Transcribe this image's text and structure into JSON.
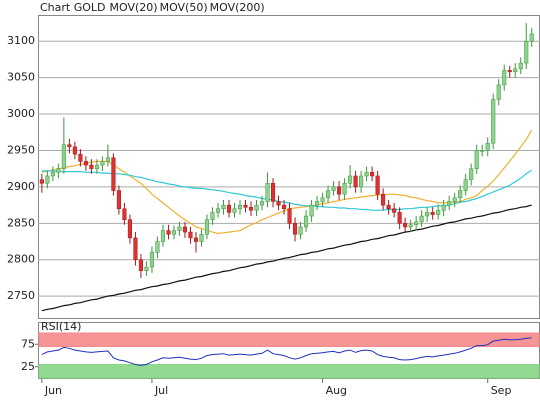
{
  "chart_data": [
    {
      "type": "candlestick",
      "title": "Chart GOLD",
      "title_color": "#e05a2a",
      "up_color": "#8fd18f",
      "up_edge": "#3a9a3a",
      "down_color": "#e03030",
      "down_edge": "#a01818",
      "open": [
        2910,
        2905,
        2915,
        2920,
        2925,
        2958,
        2955,
        2945,
        2935,
        2930,
        2925,
        2930,
        2935,
        2940,
        2895,
        2870,
        2855,
        2830,
        2800,
        2785,
        2790,
        2810,
        2825,
        2840,
        2835,
        2840,
        2845,
        2838,
        2830,
        2825,
        2835,
        2855,
        2865,
        2870,
        2875,
        2865,
        2870,
        2875,
        2872,
        2868,
        2875,
        2880,
        2905,
        2880,
        2875,
        2870,
        2850,
        2835,
        2845,
        2860,
        2875,
        2880,
        2885,
        2895,
        2900,
        2890,
        2905,
        2915,
        2900,
        2915,
        2920,
        2915,
        2890,
        2875,
        2870,
        2865,
        2850,
        2845,
        2848,
        2852,
        2860,
        2865,
        2862,
        2868,
        2875,
        2880,
        2885,
        2895,
        2910,
        2925,
        2950,
        2950,
        2960,
        3020,
        3040,
        3060,
        3058,
        3062,
        3070,
        3100
      ],
      "high": [
        2918,
        2922,
        2928,
        2932,
        2995,
        2966,
        2962,
        2952,
        2942,
        2938,
        2938,
        2942,
        2958,
        2946,
        2902,
        2878,
        2862,
        2838,
        2808,
        2798,
        2818,
        2832,
        2848,
        2848,
        2847,
        2852,
        2852,
        2845,
        2838,
        2842,
        2862,
        2872,
        2878,
        2882,
        2882,
        2878,
        2882,
        2882,
        2880,
        2882,
        2888,
        2920,
        2912,
        2888,
        2882,
        2878,
        2858,
        2852,
        2868,
        2882,
        2888,
        2892,
        2902,
        2908,
        2908,
        2912,
        2930,
        2922,
        2922,
        2928,
        2928,
        2922,
        2898,
        2882,
        2878,
        2872,
        2858,
        2855,
        2860,
        2868,
        2872,
        2872,
        2876,
        2882,
        2888,
        2892,
        2902,
        2918,
        2932,
        2958,
        2958,
        2968,
        3028,
        3048,
        3068,
        3066,
        3070,
        3078,
        3125,
        3118
      ],
      "low": [
        2892,
        2898,
        2908,
        2912,
        2918,
        2946,
        2938,
        2928,
        2922,
        2918,
        2918,
        2922,
        2928,
        2888,
        2862,
        2848,
        2822,
        2792,
        2775,
        2778,
        2782,
        2802,
        2818,
        2828,
        2828,
        2833,
        2830,
        2822,
        2810,
        2818,
        2828,
        2848,
        2858,
        2862,
        2858,
        2858,
        2862,
        2865,
        2860,
        2860,
        2868,
        2872,
        2872,
        2868,
        2862,
        2842,
        2825,
        2828,
        2838,
        2852,
        2868,
        2872,
        2878,
        2888,
        2882,
        2882,
        2898,
        2892,
        2892,
        2908,
        2908,
        2882,
        2868,
        2862,
        2858,
        2842,
        2838,
        2838,
        2840,
        2845,
        2852,
        2855,
        2855,
        2860,
        2868,
        2872,
        2878,
        2888,
        2902,
        2918,
        2942,
        2942,
        2952,
        3012,
        3032,
        3050,
        3050,
        3055,
        3062,
        3092
      ],
      "close": [
        2905,
        2915,
        2920,
        2925,
        2958,
        2955,
        2945,
        2935,
        2930,
        2925,
        2930,
        2935,
        2940,
        2895,
        2870,
        2855,
        2830,
        2800,
        2785,
        2790,
        2810,
        2825,
        2840,
        2835,
        2840,
        2845,
        2838,
        2830,
        2825,
        2835,
        2855,
        2865,
        2870,
        2875,
        2865,
        2870,
        2875,
        2872,
        2868,
        2875,
        2880,
        2905,
        2880,
        2875,
        2870,
        2850,
        2835,
        2845,
        2860,
        2875,
        2880,
        2885,
        2895,
        2900,
        2890,
        2905,
        2915,
        2900,
        2915,
        2920,
        2915,
        2890,
        2875,
        2870,
        2865,
        2850,
        2845,
        2848,
        2852,
        2860,
        2865,
        2862,
        2868,
        2875,
        2880,
        2885,
        2895,
        2910,
        2925,
        2950,
        2950,
        2960,
        3020,
        3040,
        3060,
        3058,
        3062,
        3070,
        3100,
        3110
      ],
      "series": [
        {
          "name": "MOV(20)",
          "color": "#f0b030",
          "values": [
            2920,
            2922,
            2923,
            2925,
            2926,
            2928,
            2929,
            2931,
            2932,
            2934,
            2935,
            2935,
            2935,
            2930,
            2925,
            2920,
            2915,
            2910,
            2905,
            2898,
            2890,
            2884,
            2878,
            2872,
            2866,
            2860,
            2855,
            2850,
            2845,
            2843,
            2840,
            2838,
            2836,
            2837,
            2838,
            2839,
            2840,
            2844,
            2848,
            2851,
            2855,
            2858,
            2861,
            2864,
            2867,
            2870,
            2871,
            2872,
            2873,
            2874,
            2875,
            2877,
            2878,
            2880,
            2881,
            2883,
            2884,
            2885,
            2886,
            2887,
            2888,
            2889,
            2889,
            2890,
            2890,
            2889,
            2888,
            2886,
            2885,
            2883,
            2881,
            2880,
            2878,
            2878,
            2879,
            2879,
            2880,
            2883,
            2885,
            2888,
            2895,
            2901,
            2908,
            2917,
            2926,
            2935,
            2945,
            2955,
            2965,
            2978
          ]
        },
        {
          "name": "MOV(50)",
          "color": "#30c8d8",
          "values": [
            2922,
            2922,
            2922,
            2921,
            2921,
            2921,
            2921,
            2921,
            2920,
            2920,
            2920,
            2919,
            2919,
            2918,
            2918,
            2917,
            2916,
            2914,
            2913,
            2911,
            2909,
            2907,
            2906,
            2904,
            2903,
            2901,
            2900,
            2899,
            2898,
            2898,
            2897,
            2896,
            2895,
            2894,
            2892,
            2891,
            2890,
            2888,
            2887,
            2886,
            2884,
            2883,
            2882,
            2880,
            2879,
            2878,
            2876,
            2875,
            2874,
            2874,
            2873,
            2873,
            2872,
            2872,
            2871,
            2871,
            2870,
            2870,
            2869,
            2869,
            2868,
            2868,
            2868,
            2869,
            2869,
            2869,
            2870,
            2870,
            2871,
            2872,
            2872,
            2873,
            2874,
            2874,
            2875,
            2877,
            2879,
            2880,
            2882,
            2884,
            2887,
            2890,
            2893,
            2896,
            2899,
            2902,
            2907,
            2912,
            2918,
            2923
          ]
        },
        {
          "name": "MOV(200)",
          "color": "#111111",
          "values": [
            2730,
            2732,
            2733,
            2735,
            2737,
            2738,
            2740,
            2741,
            2743,
            2745,
            2746,
            2748,
            2750,
            2751,
            2753,
            2754,
            2756,
            2758,
            2759,
            2761,
            2763,
            2764,
            2766,
            2767,
            2769,
            2771,
            2772,
            2774,
            2776,
            2777,
            2779,
            2781,
            2782,
            2784,
            2785,
            2787,
            2789,
            2790,
            2792,
            2794,
            2795,
            2797,
            2798,
            2800,
            2802,
            2803,
            2805,
            2807,
            2808,
            2810,
            2811,
            2813,
            2815,
            2816,
            2818,
            2820,
            2821,
            2823,
            2825,
            2826,
            2828,
            2829,
            2831,
            2833,
            2834,
            2836,
            2838,
            2839,
            2841,
            2842,
            2844,
            2846,
            2847,
            2849,
            2851,
            2852,
            2854,
            2856,
            2857,
            2859,
            2860,
            2862,
            2864,
            2865,
            2867,
            2869,
            2870,
            2872,
            2873,
            2875
          ]
        }
      ],
      "xlim": [
        -0.7,
        90.5
      ],
      "xticks": [
        {
          "value": 0,
          "label": "Jun"
        },
        {
          "value": 20,
          "label": "Jul"
        },
        {
          "value": 51,
          "label": "Aug"
        },
        {
          "value": 81,
          "label": "Sep"
        }
      ],
      "ylim": [
        2720,
        3136
      ],
      "yticks": [
        2750,
        2800,
        2850,
        2900,
        2950,
        3000,
        3050,
        3100
      ],
      "grid": true
    },
    {
      "type": "line",
      "title": "RSI(14)",
      "color": "#2030c0",
      "values": [
        52,
        58,
        60,
        62,
        68,
        66,
        62,
        60,
        58,
        57,
        58,
        59,
        60,
        45,
        40,
        38,
        34,
        30,
        28,
        30,
        36,
        40,
        45,
        44,
        45,
        46,
        44,
        42,
        41,
        44,
        50,
        52,
        53,
        54,
        51,
        52,
        53,
        52,
        51,
        53,
        55,
        62,
        54,
        52,
        50,
        45,
        42,
        45,
        50,
        54,
        55,
        56,
        58,
        59,
        56,
        60,
        62,
        57,
        61,
        62,
        60,
        52,
        48,
        46,
        45,
        41,
        40,
        41,
        43,
        46,
        48,
        47,
        49,
        51,
        53,
        55,
        58,
        62,
        66,
        72,
        72,
        74,
        82,
        84,
        86,
        85,
        85,
        86,
        88,
        89
      ],
      "xlim": [
        -0.7,
        90.5
      ],
      "ylim": [
        0,
        100
      ],
      "yticks": [
        25,
        75
      ],
      "overbought": [
        70,
        100
      ],
      "overbought_color": "#f48a8a",
      "oversold": [
        0,
        30
      ],
      "oversold_color": "#86d686"
    }
  ]
}
